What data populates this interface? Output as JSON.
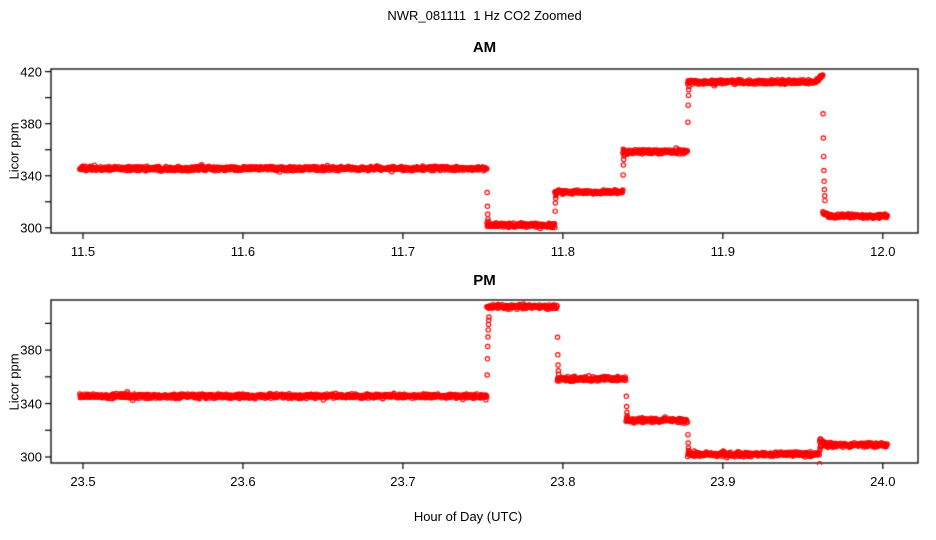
{
  "figure": {
    "title": "NWR_081111  1 Hz CO2 Zoomed",
    "xlabel": "Hour of Day (UTC)",
    "background_color": "#ffffff",
    "axis_color": "#000000",
    "point_color": "#ff0000"
  },
  "chart_data": [
    {
      "type": "scatter",
      "title": "AM",
      "ylabel": "Licor ppm",
      "marker": "open-circle",
      "color": "#ff0000",
      "sample_rate_hz": 1,
      "grid": false,
      "legend": "none",
      "xlim": [
        11.48,
        12.022
      ],
      "ylim": [
        296,
        422
      ],
      "xticks": [
        11.5,
        11.6,
        11.7,
        11.8,
        11.9,
        12.0
      ],
      "xtick_labels": [
        "11.5",
        "11.6",
        "11.7",
        "11.8",
        "11.9",
        "12.0"
      ],
      "yticks": [
        300,
        320,
        340,
        360,
        380,
        400,
        420
      ],
      "ytick_labels": [
        "300",
        "",
        "340",
        "",
        "380",
        "",
        "420"
      ],
      "segments": [
        {
          "start": 11.498,
          "end": 11.7525,
          "value": 345.5
        },
        {
          "start": 11.7525,
          "end": 11.795,
          "value": 302
        },
        {
          "start": 11.795,
          "end": 11.8375,
          "value": 327.5
        },
        {
          "start": 11.8375,
          "end": 11.878,
          "value": 358.5
        },
        {
          "start": 11.878,
          "end": 11.9625,
          "value": 412,
          "end_bump": 4.5
        },
        {
          "start": 11.9625,
          "end": 12.003,
          "value": 309,
          "start_bump": 2.5
        }
      ]
    },
    {
      "type": "scatter",
      "title": "PM",
      "ylabel": "Licor ppm",
      "marker": "open-circle",
      "color": "#ff0000",
      "sample_rate_hz": 1,
      "grid": false,
      "legend": "none",
      "xlim": [
        23.48,
        24.022
      ],
      "ylim": [
        295.5,
        417.5
      ],
      "xticks": [
        23.5,
        23.6,
        23.7,
        23.8,
        23.9,
        24.0
      ],
      "xtick_labels": [
        "23.5",
        "23.6",
        "23.7",
        "23.8",
        "23.9",
        "24.0"
      ],
      "yticks": [
        300,
        320,
        340,
        360,
        380,
        400
      ],
      "ytick_labels": [
        "300",
        "",
        "340",
        "",
        "380",
        ""
      ],
      "segments": [
        {
          "start": 23.498,
          "end": 23.7525,
          "value": 345.5
        },
        {
          "start": 23.7525,
          "end": 23.7965,
          "value": 412.5
        },
        {
          "start": 23.7965,
          "end": 23.8395,
          "value": 358.5
        },
        {
          "start": 23.8395,
          "end": 23.878,
          "value": 327.5
        },
        {
          "start": 23.878,
          "end": 23.9605,
          "value": 302
        },
        {
          "start": 23.9605,
          "end": 24.003,
          "value": 309,
          "start_bump": 4,
          "pre_dip": 7
        }
      ]
    }
  ]
}
